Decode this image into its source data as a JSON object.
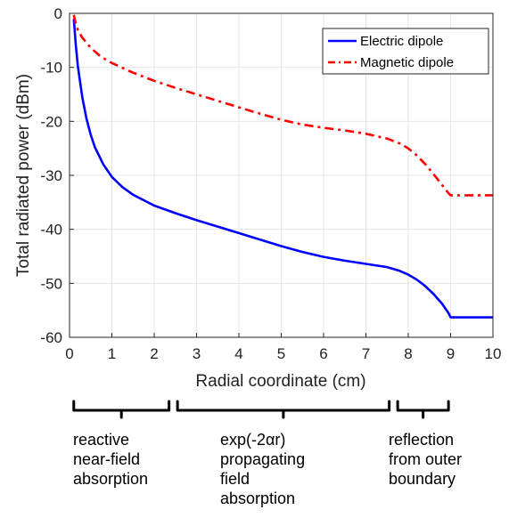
{
  "chart_data": {
    "type": "line",
    "xlabel": "Radial coordinate (cm)",
    "ylabel": "Total radiated power (dBm)",
    "xlim": [
      0,
      10
    ],
    "ylim": [
      -60,
      0
    ],
    "xticks": [
      "0",
      "1",
      "2",
      "3",
      "4",
      "5",
      "6",
      "7",
      "8",
      "9",
      "10"
    ],
    "yticks": [
      "0",
      "-10",
      "-20",
      "-30",
      "-40",
      "-50",
      "-60"
    ],
    "grid": true,
    "legend_position": "top-right",
    "series": [
      {
        "name": "Electric dipole",
        "color": "#0000ff",
        "style": "solid",
        "x": [
          0.1,
          0.15,
          0.2,
          0.3,
          0.4,
          0.5,
          0.6,
          0.8,
          1.0,
          1.25,
          1.5,
          2.0,
          2.5,
          3.0,
          3.5,
          4.0,
          4.5,
          5.0,
          5.5,
          6.0,
          6.5,
          7.0,
          7.5,
          7.8,
          8.0,
          8.2,
          8.4,
          8.6,
          8.8,
          8.95,
          9.0,
          9.5,
          10.0
        ],
        "y": [
          -1,
          -6,
          -10,
          -15.5,
          -19.5,
          -22.5,
          -24.8,
          -28,
          -30.3,
          -32.2,
          -33.6,
          -35.6,
          -37,
          -38.3,
          -39.5,
          -40.7,
          -41.9,
          -43.1,
          -44.2,
          -45.1,
          -45.8,
          -46.4,
          -47,
          -47.7,
          -48.4,
          -49.3,
          -50.5,
          -52,
          -53.8,
          -55.5,
          -56.3,
          -56.3,
          -56.3
        ]
      },
      {
        "name": "Magnetic dipole",
        "color": "#ff0000",
        "style": "dash-dot",
        "x": [
          0.1,
          0.15,
          0.2,
          0.3,
          0.5,
          0.75,
          1.0,
          1.5,
          2.0,
          2.5,
          3.0,
          3.5,
          4.0,
          4.5,
          5.0,
          5.5,
          6.0,
          6.5,
          7.0,
          7.5,
          7.8,
          8.0,
          8.2,
          8.4,
          8.6,
          8.8,
          8.95,
          9.0,
          9.5,
          10.0
        ],
        "y": [
          -0.3,
          -2,
          -3.1,
          -4.5,
          -6.4,
          -8.1,
          -9.2,
          -11,
          -12.5,
          -13.8,
          -15,
          -16.2,
          -17.4,
          -18.6,
          -19.7,
          -20.6,
          -21.2,
          -21.7,
          -22.3,
          -23.2,
          -24.1,
          -25,
          -26.3,
          -27.9,
          -29.8,
          -31.8,
          -33.3,
          -33.7,
          -33.7,
          -33.7
        ]
      }
    ]
  },
  "annotations": [
    {
      "range": [
        0.1,
        2.35
      ],
      "lines": [
        "reactive",
        "near-field",
        "absorption"
      ]
    },
    {
      "range": [
        2.55,
        7.55
      ],
      "lines": [
        "exp(-2αr)",
        "propagating",
        "field",
        "absorption"
      ]
    },
    {
      "range": [
        7.75,
        8.95
      ],
      "lines": [
        "reflection",
        "from outer",
        "boundary"
      ]
    }
  ]
}
